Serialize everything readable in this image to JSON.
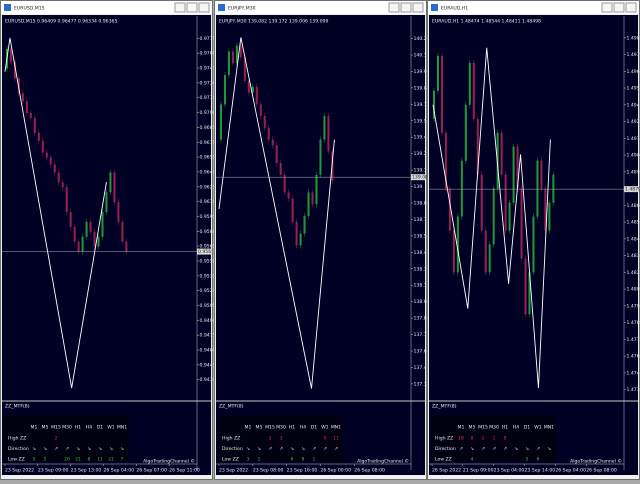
{
  "windows": [
    {
      "title": "EURUSD,M15",
      "chart": {
        "type": "candlestick",
        "header": "EURUSD,M15  0.96409 0.96477 0.96334 0.96365",
        "ylim": [
          0.9412,
          0.9786
        ],
        "yticks": [
          0.97755,
          0.97605,
          0.97455,
          0.97305,
          0.97155,
          0.97005,
          0.96855,
          0.96705,
          0.96555,
          0.96405,
          0.96255,
          0.96105,
          0.95955,
          0.95805,
          0.95655,
          0.95505,
          0.95355,
          0.95205,
          0.95055,
          0.94905,
          0.94755,
          0.94605,
          0.94455,
          0.94305
        ],
        "xlim": [
          0,
          195
        ],
        "xticks": [
          {
            "value": 2,
            "label": "23 Sep 2022"
          },
          {
            "value": 35,
            "label": "23 Sep 09:00"
          },
          {
            "value": 68,
            "label": "23 Sep 13:00"
          },
          {
            "value": 101,
            "label": "26 Sep 04:00"
          },
          {
            "value": 134,
            "label": "26 Sep 07:00"
          },
          {
            "value": 167,
            "label": "26 Sep 11:00"
          }
        ],
        "candles": {
          "up_color": "#1f9a3a",
          "down_color": "#9a2050",
          "values": [
            0.9745,
            0.9765,
            0.9752,
            0.9735,
            0.972,
            0.9712,
            0.97,
            0.9695,
            0.968,
            0.9672,
            0.966,
            0.9655,
            0.9648,
            0.964,
            0.963,
            0.9625,
            0.96,
            0.9585,
            0.957,
            0.956,
            0.9575,
            0.959,
            0.958,
            0.9565,
            0.9575,
            0.96,
            0.962,
            0.964,
            0.961,
            0.959,
            0.957,
            0.956
          ]
        },
        "zigzag": {
          "color": "#ffffff",
          "x": [
            2,
            7,
            69,
            104
          ],
          "values": [
            0.97418,
            0.9776,
            0.94221,
            0.96302
          ]
        },
        "bid": 0.956
      },
      "indicator": {
        "name": "ZZ_MTF(8)",
        "columns": [
          "M1",
          "M5",
          "M15",
          "M30",
          "H1",
          "H4",
          "D1",
          "W1",
          "MN1"
        ],
        "rows": [
          {
            "label": "High ZZ",
            "color": "#e03030",
            "values": [
              null,
              null,
              2,
              null,
              null,
              null,
              null,
              null,
              null
            ]
          },
          {
            "label": "Direction",
            "color": "#e8e8e8",
            "values": [
              "↘",
              "↘",
              "↗",
              "↗",
              "↘",
              "↘",
              "↘",
              "↘",
              "↘"
            ]
          },
          {
            "label": "Low ZZ",
            "color": "#30c040",
            "values": [
              5,
              5,
              null,
              20,
              21,
              8,
              11,
              21,
              7
            ]
          }
        ],
        "credit": "AlgoTradingChannel ©"
      }
    },
    {
      "title": "EURJPY,M30",
      "chart": {
        "type": "candlestick",
        "header": "EURJPY,M30  139.082 139.172 139.006 139.099",
        "ylim": [
          137.2,
          140.35
        ],
        "yticks": [
          140.26,
          140.12,
          139.98,
          139.84,
          139.7,
          139.56,
          139.42,
          139.28,
          139.14,
          139.0,
          138.86,
          138.72,
          138.58,
          138.44,
          138.3,
          138.16,
          138.02,
          137.88,
          137.74,
          137.6,
          137.46,
          137.32
        ],
        "xlim": [
          0,
          195
        ],
        "xticks": [
          {
            "value": 2,
            "label": "23 Sep 2022"
          },
          {
            "value": 36,
            "label": "23 Sep 08:00"
          },
          {
            "value": 70,
            "label": "23 Sep 16:00"
          },
          {
            "value": 104,
            "label": "26 Sep 00:00"
          },
          {
            "value": 138,
            "label": "26 Sep 08:00"
          }
        ],
        "candles": {
          "up_color": "#1f9a3a",
          "down_color": "#9a2050",
          "values": [
            139.4,
            139.7,
            139.95,
            140.15,
            140.05,
            140.2,
            140.1,
            139.9,
            139.8,
            139.85,
            139.7,
            139.6,
            139.5,
            139.4,
            139.35,
            139.2,
            139.1,
            138.95,
            138.9,
            138.7,
            138.5,
            138.6,
            138.75,
            138.95,
            138.85,
            139.1,
            139.4,
            139.6,
            139.3,
            139.05
          ]
        },
        "zigzag": {
          "color": "#ffffff",
          "x": [
            2,
            24,
            95,
            118
          ],
          "values": [
            138.81,
            140.27,
            137.28,
            139.4
          ]
        },
        "bid": 139.08
      },
      "indicator": {
        "name": "ZZ_MTF(8)",
        "columns": [
          "M1",
          "M5",
          "M15",
          "M30",
          "H1",
          "H4",
          "D1",
          "W1",
          "MN1"
        ],
        "rows": [
          {
            "label": "High ZZ",
            "color": "#e03030",
            "values": [
              null,
              null,
              3,
              3,
              null,
              null,
              null,
              9,
              11
            ]
          },
          {
            "label": "Direction",
            "color": "#e8e8e8",
            "values": [
              "↘",
              "↘",
              "↗",
              "↗",
              "↘",
              "↘",
              "↗",
              "↗",
              "↗"
            ]
          },
          {
            "label": "Low ZZ",
            "color": "#30c040",
            "values": [
              3,
              2,
              null,
              null,
              6,
              8,
              1,
              null,
              null
            ]
          }
        ],
        "credit": "AlgoTradingChannel ©"
      }
    },
    {
      "title": "EURAUD,H1",
      "chart": {
        "type": "candlestick",
        "header": "EURAUD,H1  1.48474 1.48544 1.48411 1.48498",
        "ylim": [
          1.473,
          1.4995
        ],
        "yticks": [
          1.4988,
          1.4976,
          1.4964,
          1.4952,
          1.494,
          1.4928,
          1.4916,
          1.4904,
          1.4892,
          1.488,
          1.4868,
          1.4856,
          1.4844,
          1.4832,
          1.482,
          1.4808,
          1.4796,
          1.4784,
          1.4772,
          1.476,
          1.4748,
          1.4736
        ],
        "xlim": [
          0,
          195
        ],
        "xticks": [
          {
            "value": 2,
            "label": "26 Sep 2022"
          },
          {
            "value": 33,
            "label": "21 Sep 09:00"
          },
          {
            "value": 64,
            "label": "23 Sep 04:00"
          },
          {
            "value": 95,
            "label": "23 Sep 14:00"
          },
          {
            "value": 126,
            "label": "26 Sep 04:00"
          },
          {
            "value": 157,
            "label": "26 Sep 08:00"
          }
        ],
        "candles": {
          "up_color": "#1f9a3a",
          "down_color": "#9a2050",
          "values": [
            1.493,
            1.495,
            1.4975,
            1.492,
            1.488,
            1.485,
            1.482,
            1.486,
            1.49,
            1.494,
            1.497,
            1.493,
            1.489,
            1.485,
            1.482,
            1.484,
            1.488,
            1.492,
            1.489,
            1.485,
            1.487,
            1.491,
            1.488,
            1.483,
            1.479,
            1.482,
            1.486,
            1.49,
            1.488,
            1.485,
            1.487,
            1.489
          ]
        },
        "zigzag": {
          "color": "#ffffff",
          "x": [
            3,
            38,
            57,
            79,
            91,
            109,
            121
          ],
          "values": [
            1.49401,
            1.47941,
            1.49808,
            1.48119,
            1.49045,
            1.47371,
            1.49152
          ]
        },
        "bid": 1.48796
      },
      "indicator": {
        "name": "ZZ_MTF(8)",
        "columns": [
          "M1",
          "M5",
          "M15",
          "M30",
          "H1",
          "H4",
          "D1",
          "W1",
          "MN1"
        ],
        "rows": [
          {
            "label": "High ZZ",
            "color": "#e03030",
            "values": [
              18,
              8,
              2,
              1,
              8,
              null,
              null,
              null,
              null
            ]
          },
          {
            "label": "Direction",
            "color": "#e8e8e8",
            "values": [
              "↗",
              "↘",
              "↗",
              "↗",
              "↗",
              "↘",
              "↘",
              "↗",
              "↘"
            ]
          },
          {
            "label": "Low ZZ",
            "color": "#30c040",
            "values": [
              null,
              4,
              null,
              null,
              null,
              null,
              5,
              6,
              null
            ]
          }
        ],
        "credit": "AlgoTradingChannel ©"
      }
    }
  ]
}
